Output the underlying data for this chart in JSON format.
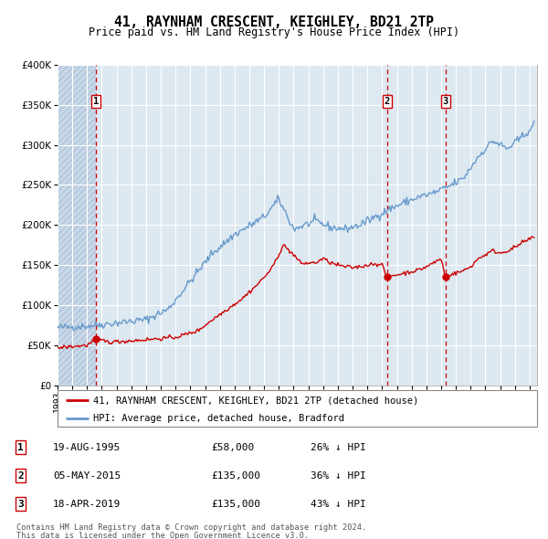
{
  "title": "41, RAYNHAM CRESCENT, KEIGHLEY, BD21 2TP",
  "subtitle": "Price paid vs. HM Land Registry's House Price Index (HPI)",
  "hpi_label": "HPI: Average price, detached house, Bradford",
  "price_label": "41, RAYNHAM CRESCENT, KEIGHLEY, BD21 2TP (detached house)",
  "footer1": "Contains HM Land Registry data © Crown copyright and database right 2024.",
  "footer2": "This data is licensed under the Open Government Licence v3.0.",
  "transactions": [
    {
      "num": 1,
      "date": "19-AUG-1995",
      "price": 58000,
      "pct": "26%",
      "dir": "↓",
      "x_year": 1995.63
    },
    {
      "num": 2,
      "date": "05-MAY-2015",
      "price": 135000,
      "pct": "36%",
      "dir": "↓",
      "x_year": 2015.34
    },
    {
      "num": 3,
      "date": "18-APR-2019",
      "price": 135000,
      "pct": "43%",
      "dir": "↓",
      "x_year": 2019.29
    }
  ],
  "hpi_color": "#6699cc",
  "price_color": "#cc0000",
  "vline_color": "#cc0000",
  "background_plot": "#dde8f0",
  "background_hatch": "#c8d8e8",
  "grid_color": "#ffffff",
  "ylim": [
    0,
    400000
  ],
  "yticks": [
    0,
    50000,
    100000,
    150000,
    200000,
    250000,
    300000,
    350000,
    400000
  ],
  "xlim_start": 1993.0,
  "xlim_end": 2025.5,
  "hpi_anchors": [
    [
      1993.0,
      72000
    ],
    [
      1995.0,
      74000
    ],
    [
      1995.5,
      75000
    ],
    [
      1997.0,
      78000
    ],
    [
      1999.0,
      82000
    ],
    [
      2000.5,
      95000
    ],
    [
      2002.0,
      130000
    ],
    [
      2003.5,
      165000
    ],
    [
      2005.0,
      188000
    ],
    [
      2007.0,
      210000
    ],
    [
      2008.0,
      232000
    ],
    [
      2009.0,
      195000
    ],
    [
      2010.5,
      205000
    ],
    [
      2011.5,
      197000
    ],
    [
      2012.5,
      195000
    ],
    [
      2013.5,
      200000
    ],
    [
      2014.5,
      210000
    ],
    [
      2015.5,
      220000
    ],
    [
      2016.5,
      228000
    ],
    [
      2017.5,
      235000
    ],
    [
      2018.5,
      240000
    ],
    [
      2019.5,
      248000
    ],
    [
      2020.5,
      258000
    ],
    [
      2021.5,
      285000
    ],
    [
      2022.5,
      305000
    ],
    [
      2023.5,
      295000
    ],
    [
      2024.5,
      310000
    ],
    [
      2025.3,
      325000
    ]
  ],
  "price_anchors": [
    [
      1993.0,
      47000
    ],
    [
      1995.0,
      50000
    ],
    [
      1995.63,
      58000
    ],
    [
      1996.5,
      54000
    ],
    [
      1997.5,
      55000
    ],
    [
      1999.0,
      57000
    ],
    [
      2001.0,
      60000
    ],
    [
      2002.5,
      68000
    ],
    [
      2003.5,
      82000
    ],
    [
      2004.5,
      95000
    ],
    [
      2005.5,
      108000
    ],
    [
      2006.5,
      125000
    ],
    [
      2007.5,
      145000
    ],
    [
      2008.3,
      175000
    ],
    [
      2009.0,
      163000
    ],
    [
      2009.5,
      152000
    ],
    [
      2010.5,
      153000
    ],
    [
      2011.0,
      158000
    ],
    [
      2011.5,
      153000
    ],
    [
      2012.0,
      150000
    ],
    [
      2012.5,
      148000
    ],
    [
      2013.0,
      147000
    ],
    [
      2013.5,
      148000
    ],
    [
      2014.0,
      150000
    ],
    [
      2014.5,
      152000
    ],
    [
      2015.0,
      150000
    ],
    [
      2015.34,
      135000
    ],
    [
      2015.5,
      136000
    ],
    [
      2016.0,
      138000
    ],
    [
      2016.5,
      140000
    ],
    [
      2017.0,
      142000
    ],
    [
      2017.5,
      144000
    ],
    [
      2018.0,
      148000
    ],
    [
      2018.5,
      153000
    ],
    [
      2019.0,
      158000
    ],
    [
      2019.29,
      135000
    ],
    [
      2019.5,
      138000
    ],
    [
      2020.0,
      140000
    ],
    [
      2020.5,
      143000
    ],
    [
      2021.0,
      148000
    ],
    [
      2021.5,
      158000
    ],
    [
      2022.0,
      163000
    ],
    [
      2022.5,
      168000
    ],
    [
      2023.0,
      165000
    ],
    [
      2023.5,
      168000
    ],
    [
      2024.0,
      172000
    ],
    [
      2024.5,
      178000
    ],
    [
      2025.3,
      185000
    ]
  ]
}
